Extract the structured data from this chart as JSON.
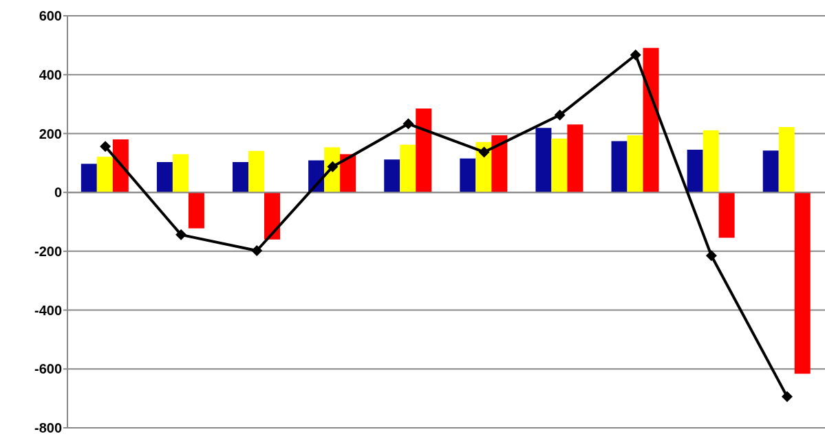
{
  "chart_data": {
    "type": "bar",
    "categories": [
      null,
      null,
      null,
      null,
      null,
      null,
      null,
      null,
      null,
      null
    ],
    "series": [
      {
        "color": "#0a0a9a",
        "values": [
          97,
          103,
          103,
          109,
          112,
          115,
          219,
          174,
          145,
          142
        ]
      },
      {
        "color": "#ffff00",
        "values": [
          121,
          130,
          141,
          153,
          162,
          171,
          183,
          194,
          211,
          222
        ]
      },
      {
        "color": "#ff0000",
        "values": [
          180,
          -122,
          -160,
          130,
          285,
          194,
          231,
          491,
          -154,
          -616
        ]
      },
      {
        "type": "line",
        "color": "#000000",
        "values": [
          156,
          -144,
          -198,
          87,
          233,
          137,
          263,
          467,
          -215,
          -694
        ]
      }
    ],
    "ylim": [
      -800,
      600
    ],
    "yticks": [
      -800,
      -600,
      -400,
      -200,
      0,
      200,
      400,
      600
    ],
    "grid": "y",
    "marker": "diamond",
    "line_style": "solid",
    "legend": false
  }
}
